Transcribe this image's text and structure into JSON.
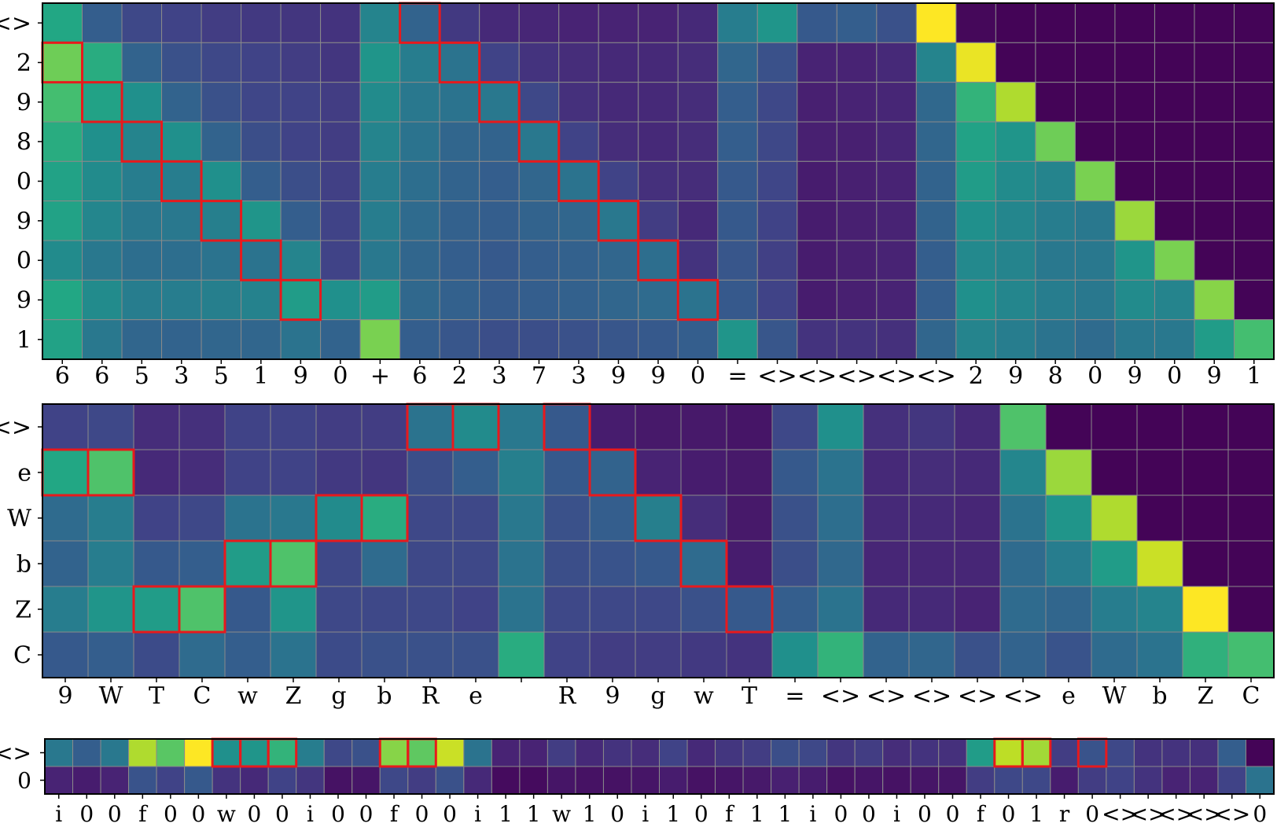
{
  "chart_data": [
    {
      "type": "heatmap",
      "title": "",
      "xlabel": "",
      "ylabel": "",
      "colormap": "viridis",
      "x_ticks": [
        "6",
        "6",
        "5",
        "3",
        "5",
        "1",
        "9",
        "0",
        "+",
        "6",
        "2",
        "3",
        "7",
        "3",
        "9",
        "9",
        "0",
        "=",
        "<>",
        "<>",
        "<>",
        "<>",
        "<>",
        "2",
        "9",
        "8",
        "0",
        "9",
        "0",
        "9",
        "1"
      ],
      "y_ticks": [
        "<>",
        "2",
        "9",
        "8",
        "0",
        "9",
        "0",
        "9",
        "1"
      ],
      "values": [
        [
          0.6,
          0.3,
          0.22,
          0.2,
          0.18,
          0.17,
          0.16,
          0.15,
          0.45,
          0.32,
          0.17,
          0.12,
          0.11,
          0.1,
          0.1,
          0.1,
          0.12,
          0.42,
          0.52,
          0.28,
          0.3,
          0.25,
          1.0,
          0.02,
          0.01,
          0.01,
          0.01,
          0.01,
          0.01,
          0.01,
          0.01
        ],
        [
          0.78,
          0.62,
          0.32,
          0.25,
          0.22,
          0.2,
          0.18,
          0.16,
          0.52,
          0.42,
          0.38,
          0.2,
          0.15,
          0.13,
          0.12,
          0.12,
          0.13,
          0.33,
          0.25,
          0.1,
          0.1,
          0.12,
          0.45,
          0.97,
          0.01,
          0.01,
          0.01,
          0.01,
          0.01,
          0.01,
          0.01
        ],
        [
          0.7,
          0.58,
          0.5,
          0.32,
          0.25,
          0.21,
          0.2,
          0.18,
          0.48,
          0.4,
          0.38,
          0.4,
          0.22,
          0.14,
          0.12,
          0.12,
          0.13,
          0.3,
          0.22,
          0.09,
          0.1,
          0.11,
          0.34,
          0.65,
          0.88,
          0.01,
          0.01,
          0.01,
          0.01,
          0.01,
          0.01
        ],
        [
          0.62,
          0.5,
          0.45,
          0.5,
          0.32,
          0.24,
          0.2,
          0.18,
          0.45,
          0.38,
          0.33,
          0.32,
          0.4,
          0.2,
          0.13,
          0.12,
          0.13,
          0.3,
          0.22,
          0.09,
          0.09,
          0.11,
          0.33,
          0.58,
          0.52,
          0.78,
          0.01,
          0.01,
          0.01,
          0.01,
          0.01
        ],
        [
          0.58,
          0.48,
          0.42,
          0.42,
          0.5,
          0.3,
          0.24,
          0.19,
          0.42,
          0.36,
          0.32,
          0.3,
          0.33,
          0.38,
          0.2,
          0.14,
          0.13,
          0.28,
          0.21,
          0.08,
          0.09,
          0.1,
          0.32,
          0.55,
          0.48,
          0.45,
          0.8,
          0.01,
          0.01,
          0.01,
          0.01
        ],
        [
          0.58,
          0.46,
          0.4,
          0.4,
          0.43,
          0.52,
          0.3,
          0.2,
          0.42,
          0.35,
          0.31,
          0.3,
          0.32,
          0.33,
          0.4,
          0.18,
          0.12,
          0.28,
          0.2,
          0.08,
          0.09,
          0.1,
          0.32,
          0.5,
          0.46,
          0.42,
          0.4,
          0.85,
          0.01,
          0.01,
          0.01
        ],
        [
          0.48,
          0.4,
          0.36,
          0.36,
          0.38,
          0.38,
          0.45,
          0.2,
          0.4,
          0.33,
          0.3,
          0.28,
          0.3,
          0.31,
          0.33,
          0.36,
          0.15,
          0.27,
          0.19,
          0.08,
          0.09,
          0.1,
          0.3,
          0.47,
          0.45,
          0.4,
          0.4,
          0.52,
          0.8,
          0.01,
          0.01
        ],
        [
          0.6,
          0.48,
          0.42,
          0.42,
          0.43,
          0.44,
          0.55,
          0.5,
          0.55,
          0.34,
          0.31,
          0.29,
          0.3,
          0.31,
          0.33,
          0.35,
          0.38,
          0.28,
          0.2,
          0.08,
          0.09,
          0.1,
          0.3,
          0.5,
          0.46,
          0.42,
          0.4,
          0.48,
          0.45,
          0.82,
          0.01
        ],
        [
          0.58,
          0.4,
          0.33,
          0.32,
          0.33,
          0.33,
          0.38,
          0.32,
          0.8,
          0.3,
          0.27,
          0.24,
          0.24,
          0.25,
          0.27,
          0.28,
          0.3,
          0.52,
          0.27,
          0.15,
          0.15,
          0.14,
          0.33,
          0.45,
          0.42,
          0.38,
          0.35,
          0.4,
          0.4,
          0.55,
          0.7
        ]
      ],
      "highlight_cells": [
        [
          0,
          9
        ],
        [
          1,
          0
        ],
        [
          1,
          10
        ],
        [
          2,
          1
        ],
        [
          2,
          11
        ],
        [
          3,
          2
        ],
        [
          3,
          12
        ],
        [
          4,
          3
        ],
        [
          4,
          13
        ],
        [
          5,
          4
        ],
        [
          5,
          14
        ],
        [
          6,
          5
        ],
        [
          6,
          15
        ],
        [
          7,
          6
        ],
        [
          7,
          16
        ]
      ]
    },
    {
      "type": "heatmap",
      "title": "",
      "xlabel": "",
      "ylabel": "",
      "colormap": "viridis",
      "x_ticks": [
        "9",
        "W",
        "T",
        "C",
        "w",
        "Z",
        "g",
        "b",
        "R",
        "e",
        " ",
        "R",
        "9",
        "g",
        "w",
        "T",
        "=",
        "<>",
        "<>",
        "<>",
        "<>",
        "<>",
        "e",
        "W",
        "b",
        "Z",
        "C"
      ],
      "y_ticks": [
        "<>",
        "e",
        "W",
        "b",
        "Z",
        "C"
      ],
      "values": [
        [
          0.2,
          0.22,
          0.13,
          0.14,
          0.2,
          0.2,
          0.18,
          0.18,
          0.38,
          0.48,
          0.4,
          0.28,
          0.08,
          0.07,
          0.07,
          0.06,
          0.22,
          0.5,
          0.14,
          0.16,
          0.12,
          0.72,
          0.01,
          0.01,
          0.01,
          0.01,
          0.01
        ],
        [
          0.6,
          0.72,
          0.12,
          0.13,
          0.2,
          0.2,
          0.17,
          0.16,
          0.24,
          0.3,
          0.43,
          0.28,
          0.32,
          0.1,
          0.08,
          0.07,
          0.28,
          0.38,
          0.12,
          0.13,
          0.12,
          0.46,
          0.85,
          0.01,
          0.01,
          0.01,
          0.01
        ],
        [
          0.35,
          0.42,
          0.2,
          0.22,
          0.38,
          0.4,
          0.48,
          0.62,
          0.22,
          0.22,
          0.4,
          0.25,
          0.3,
          0.43,
          0.13,
          0.07,
          0.25,
          0.36,
          0.12,
          0.12,
          0.11,
          0.38,
          0.52,
          0.88,
          0.01,
          0.01,
          0.01
        ],
        [
          0.32,
          0.42,
          0.28,
          0.3,
          0.55,
          0.72,
          0.22,
          0.35,
          0.22,
          0.22,
          0.38,
          0.24,
          0.26,
          0.28,
          0.35,
          0.08,
          0.24,
          0.34,
          0.11,
          0.11,
          0.11,
          0.35,
          0.42,
          0.55,
          0.92,
          0.01,
          0.01
        ],
        [
          0.42,
          0.52,
          0.55,
          0.72,
          0.28,
          0.52,
          0.22,
          0.22,
          0.22,
          0.2,
          0.38,
          0.22,
          0.22,
          0.22,
          0.25,
          0.28,
          0.3,
          0.38,
          0.12,
          0.12,
          0.1,
          0.35,
          0.33,
          0.42,
          0.45,
          1.0,
          0.01
        ],
        [
          0.28,
          0.3,
          0.23,
          0.35,
          0.3,
          0.38,
          0.23,
          0.25,
          0.25,
          0.25,
          0.62,
          0.2,
          0.18,
          0.18,
          0.17,
          0.15,
          0.5,
          0.65,
          0.32,
          0.33,
          0.25,
          0.32,
          0.26,
          0.35,
          0.38,
          0.64,
          0.7
        ]
      ],
      "highlight_cells": [
        [
          0,
          8
        ],
        [
          0,
          9
        ],
        [
          0,
          11
        ],
        [
          1,
          0
        ],
        [
          1,
          1
        ],
        [
          1,
          12
        ],
        [
          2,
          6
        ],
        [
          2,
          7
        ],
        [
          2,
          13
        ],
        [
          3,
          4
        ],
        [
          3,
          5
        ],
        [
          3,
          14
        ],
        [
          4,
          2
        ],
        [
          4,
          3
        ],
        [
          4,
          15
        ]
      ]
    },
    {
      "type": "heatmap",
      "title": "",
      "xlabel": "",
      "ylabel": "",
      "colormap": "viridis",
      "x_ticks": [
        "i",
        "0",
        "0",
        "f",
        "0",
        "0",
        "w",
        "0",
        "0",
        "i",
        "0",
        "0",
        "f",
        "0",
        "0",
        "i",
        "1",
        "1",
        "w",
        "1",
        "0",
        "i",
        "1",
        "0",
        "f",
        "1",
        "1",
        "i",
        "0",
        "0",
        "i",
        "0",
        "0",
        "f",
        "0",
        "1",
        "r",
        "0",
        "<>",
        "<>",
        "<>",
        "<>",
        "<>",
        "0"
      ],
      "y_ticks": [
        "<>",
        "0"
      ],
      "values": [
        [
          0.4,
          0.3,
          0.4,
          0.88,
          0.74,
          1.0,
          0.5,
          0.52,
          0.65,
          0.42,
          0.22,
          0.25,
          0.82,
          0.75,
          0.92,
          0.38,
          0.1,
          0.1,
          0.18,
          0.12,
          0.15,
          0.13,
          0.2,
          0.12,
          0.16,
          0.18,
          0.24,
          0.22,
          0.16,
          0.18,
          0.13,
          0.15,
          0.14,
          0.55,
          0.9,
          0.86,
          0.18,
          0.26,
          0.22,
          0.15,
          0.15,
          0.14,
          0.3,
          0.01
        ],
        [
          0.1,
          0.08,
          0.1,
          0.26,
          0.2,
          0.28,
          0.15,
          0.12,
          0.2,
          0.16,
          0.05,
          0.06,
          0.22,
          0.18,
          0.25,
          0.12,
          0.03,
          0.03,
          0.06,
          0.05,
          0.05,
          0.06,
          0.08,
          0.05,
          0.06,
          0.07,
          0.09,
          0.08,
          0.05,
          0.06,
          0.05,
          0.06,
          0.06,
          0.18,
          0.22,
          0.22,
          0.08,
          0.18,
          0.2,
          0.15,
          0.1,
          0.1,
          0.2,
          0.38
        ]
      ],
      "highlight_cells": [
        [
          0,
          6
        ],
        [
          0,
          7
        ],
        [
          0,
          8
        ],
        [
          0,
          12
        ],
        [
          0,
          13
        ],
        [
          0,
          34
        ],
        [
          0,
          35
        ],
        [
          0,
          37
        ]
      ]
    }
  ],
  "style": {
    "highlight_color": "#e8191c",
    "grid_color": "#8a8a8a"
  }
}
